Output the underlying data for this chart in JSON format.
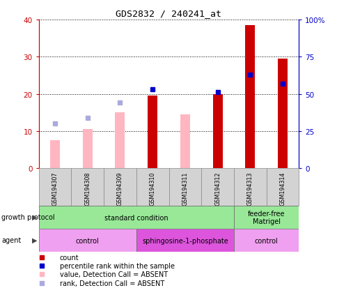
{
  "title": "GDS2832 / 240241_at",
  "samples": [
    "GSM194307",
    "GSM194308",
    "GSM194309",
    "GSM194310",
    "GSM194311",
    "GSM194312",
    "GSM194313",
    "GSM194314"
  ],
  "count_values": [
    null,
    null,
    null,
    19.5,
    null,
    20.0,
    38.5,
    29.5
  ],
  "percentile_rank_pct": [
    null,
    null,
    null,
    53.0,
    null,
    51.0,
    63.0,
    57.0
  ],
  "absent_value": [
    7.5,
    10.5,
    15.0,
    null,
    14.5,
    null,
    null,
    null
  ],
  "absent_rank_pct": [
    30.0,
    34.0,
    44.0,
    null,
    null,
    null,
    null,
    null
  ],
  "ylim_left": [
    0,
    40
  ],
  "ylim_right": [
    0,
    100
  ],
  "yticks_left": [
    0,
    10,
    20,
    30,
    40
  ],
  "yticks_right": [
    0,
    25,
    50,
    75,
    100
  ],
  "ytick_labels_right": [
    "0",
    "25",
    "50",
    "75",
    "100%"
  ],
  "bar_width": 0.3,
  "growth_protocol_groups": [
    {
      "label": "standard condition",
      "start": 0,
      "end": 6,
      "color": "#98E898"
    },
    {
      "label": "feeder-free\nMatrigel",
      "start": 6,
      "end": 8,
      "color": "#98E898"
    }
  ],
  "agent_groups": [
    {
      "label": "control",
      "start": 0,
      "end": 3,
      "color": "#F0A0F0"
    },
    {
      "label": "sphingosine-1-phosphate",
      "start": 3,
      "end": 6,
      "color": "#DD55DD"
    },
    {
      "label": "control",
      "start": 6,
      "end": 8,
      "color": "#F0A0F0"
    }
  ],
  "bar_color_count": "#CC0000",
  "bar_color_absent_value": "#FFB6C1",
  "dot_color_percentile": "#0000CC",
  "dot_color_absent_rank": "#AAAADD",
  "left_axis_color": "#CC0000",
  "right_axis_color": "#0000CC",
  "sample_box_color": "#D3D3D3",
  "sample_box_edge": "#888888"
}
